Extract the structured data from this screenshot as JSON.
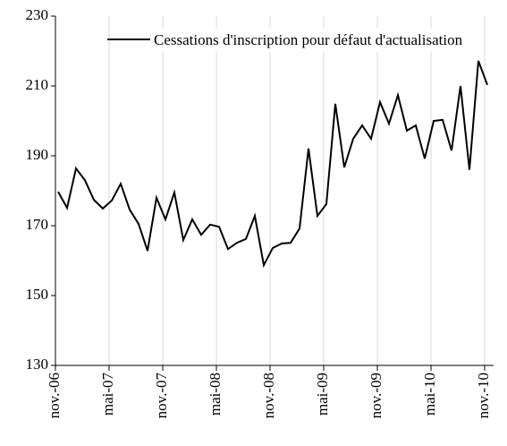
{
  "chart_data": {
    "type": "line",
    "categories": [
      "nov.-06",
      null,
      null,
      null,
      null,
      null,
      "mai-07",
      null,
      null,
      null,
      null,
      null,
      "nov.-07",
      null,
      null,
      null,
      null,
      null,
      "mai-08",
      null,
      null,
      null,
      null,
      null,
      "nov.-08",
      null,
      null,
      null,
      null,
      null,
      "mai-09",
      null,
      null,
      null,
      null,
      null,
      "nov.-09",
      null,
      null,
      null,
      null,
      null,
      "mai-10",
      null,
      null,
      null,
      null,
      null,
      "nov.-10"
    ],
    "series": [
      {
        "name": "Cessations d'inscription pour défaut d'actualisation",
        "color": "#000000",
        "values": [
          179.7,
          175.1,
          186.4,
          183,
          177.4,
          174.9,
          177.2,
          182,
          174.6,
          170.5,
          162.8,
          178,
          171.8,
          179.5,
          165.9,
          171.8,
          167.4,
          170.3,
          169.7,
          163.3,
          165.1,
          166.2,
          172.8,
          158.7,
          163.6,
          164.9,
          165.1,
          169.2,
          192.1,
          172.8,
          176.2,
          204.9,
          186.7,
          194.9,
          198.7,
          194.9,
          205.4,
          199.2,
          207.4,
          197.2,
          198.7,
          189.2,
          200,
          200.3,
          191.5,
          210,
          186,
          217.2,
          210.3
        ]
      }
    ],
    "ylim": [
      130,
      230
    ],
    "yticks": [
      130,
      150,
      170,
      190,
      210,
      230
    ],
    "grid": "x"
  }
}
